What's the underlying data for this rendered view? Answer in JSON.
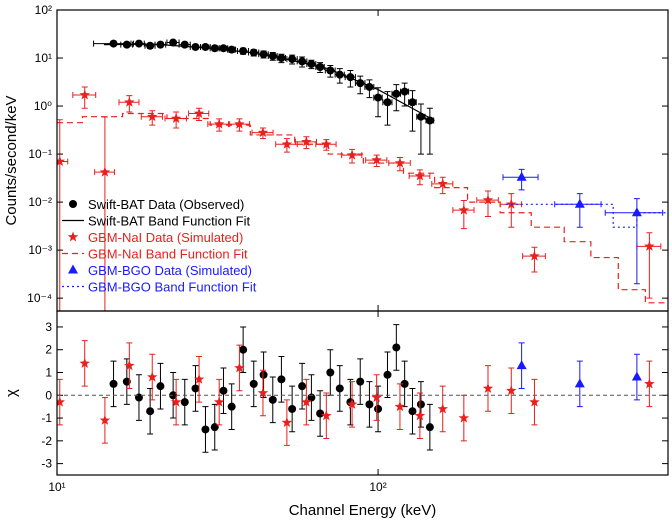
{
  "chart_data": [
    {
      "type": "scatter",
      "ylabel": "Counts/second/keV",
      "xlog": true,
      "ylog": true,
      "xlim": [
        10,
        800
      ],
      "ylim": [
        5.4e-05,
        100
      ],
      "xticks": [
        10,
        100
      ],
      "yticks": [
        {
          "value": 0.0001,
          "label": "10⁻⁴"
        },
        {
          "value": 0.001,
          "label": "10⁻³"
        },
        {
          "value": 0.01,
          "label": "10⁻²"
        },
        {
          "value": 0.1,
          "label": "10⁻¹"
        },
        {
          "value": 1,
          "label": "10⁰"
        },
        {
          "value": 10,
          "label": "10¹"
        },
        {
          "value": 100,
          "label": "10²"
        }
      ],
      "legend": "lower left",
      "series": [
        {
          "name": "Swift-BAT Data (Observed)",
          "color": "#000000",
          "marker": "circle",
          "x": [
            15,
            16.5,
            18,
            19.5,
            21,
            23,
            25,
            27,
            29,
            31,
            33,
            35,
            38,
            41,
            44,
            47,
            50,
            54,
            58,
            62,
            66,
            71,
            76,
            82,
            88,
            94,
            100,
            107,
            114,
            121,
            128,
            136,
            145
          ],
          "values": [
            20,
            19,
            20,
            18,
            19,
            21,
            19,
            17,
            17,
            16,
            16,
            15,
            14,
            13,
            12,
            11,
            10,
            9.5,
            8.5,
            7.5,
            6.5,
            5.5,
            4.5,
            4,
            3,
            2.5,
            1.5,
            1.2,
            1.8,
            2,
            1.2,
            0.6,
            0.5
          ],
          "yerr": [
            2,
            2,
            2,
            2,
            2,
            2,
            2,
            2,
            2,
            2,
            2,
            2,
            2,
            2,
            2,
            2,
            2,
            2,
            2,
            1.5,
            1.5,
            1.5,
            1.5,
            1.5,
            1.2,
            1,
            0.9,
            0.8,
            1,
            1,
            0.9,
            0.5,
            0.4
          ],
          "xerr": [
            2,
            0.7,
            0.7,
            0.7,
            0.8,
            1,
            1,
            1,
            1,
            1,
            1,
            1,
            1.5,
            1.5,
            1.5,
            1.5,
            1.5,
            2,
            2,
            2,
            2,
            2.5,
            2.5,
            3,
            3,
            3,
            3,
            3.5,
            3.5,
            3.5,
            3.5,
            4,
            4
          ]
        },
        {
          "name": "Swift-BAT Band Function Fit",
          "color": "#000000",
          "mode": "line",
          "x": [
            14,
            20,
            30,
            40,
            50,
            70,
            100,
            150
          ],
          "values": [
            19,
            19.5,
            16,
            13,
            10,
            6,
            2.2,
            0.5
          ]
        },
        {
          "name": "GBM-NaI Data (Simulated)",
          "color": "#e8201e",
          "marker": "star",
          "x": [
            10.2,
            12.2,
            14.1,
            16.8,
            19.8,
            23.5,
            27.7,
            32,
            37,
            43.8,
            52,
            59.8,
            69,
            83,
            99,
            117,
            135,
            159,
            185,
            220,
            260,
            307,
            700
          ],
          "values": [
            0.07,
            1.7,
            0.042,
            1.2,
            0.6,
            0.55,
            0.7,
            0.42,
            0.42,
            0.28,
            0.16,
            0.18,
            0.16,
            0.095,
            0.075,
            0.065,
            0.035,
            0.024,
            0.0068,
            0.011,
            0.009,
            0.00075,
            0.0012
          ],
          "yerr": [
            0.45,
            0.8,
            0.55,
            0.45,
            0.2,
            0.2,
            0.2,
            0.12,
            0.12,
            0.07,
            0.05,
            0.05,
            0.04,
            0.03,
            0.02,
            0.02,
            0.012,
            0.009,
            0.004,
            0.006,
            0.006,
            0.0004,
            0.0011
          ],
          "xerr": [
            0.6,
            1,
            1,
            1.2,
            1.5,
            1.8,
            2,
            2.5,
            2.8,
            3.3,
            4,
            4.5,
            5,
            6,
            7.5,
            9,
            10,
            12,
            14,
            17,
            20,
            25,
            60
          ]
        },
        {
          "name": "GBM-NaI Band Function Fit",
          "color": "#e8201e",
          "mode": "line",
          "dash": "dashed",
          "x": [
            10,
            12,
            12,
            16,
            16,
            22,
            22,
            30,
            30,
            40,
            40,
            55,
            55,
            70,
            70,
            90,
            90,
            120,
            120,
            150,
            150,
            190,
            190,
            240,
            240,
            300,
            300,
            380,
            380,
            460,
            460,
            560,
            560,
            680,
            680,
            800
          ],
          "values": [
            0.45,
            0.45,
            0.6,
            0.6,
            0.7,
            0.7,
            0.55,
            0.55,
            0.4,
            0.4,
            0.25,
            0.25,
            0.16,
            0.16,
            0.1,
            0.1,
            0.065,
            0.065,
            0.04,
            0.04,
            0.02,
            0.02,
            0.01,
            0.01,
            0.006,
            0.006,
            0.003,
            0.003,
            0.0015,
            0.0015,
            0.0007,
            0.0007,
            0.00015,
            0.00015,
            8e-05,
            8e-05
          ]
        },
        {
          "name": "GBM-BGO Data (Simulated)",
          "color": "#1a1aff",
          "marker": "triangle",
          "x": [
            280,
            425,
            640
          ],
          "values": [
            0.033,
            0.009,
            0.006
          ],
          "yerr": [
            0.015,
            0.006,
            0.0058
          ],
          "xerr": [
            35,
            70,
            130
          ]
        },
        {
          "name": "GBM-BGO Band Function Fit",
          "color": "#1a1aff",
          "mode": "line",
          "dash": "dotted",
          "x": [
            250,
            540,
            540,
            640,
            640,
            800
          ],
          "values": [
            0.009,
            0.009,
            0.003,
            0.003,
            0.006,
            0.006
          ]
        }
      ]
    },
    {
      "type": "scatter",
      "ylabel": "χ",
      "xlabel": "Channel Energy (keV)",
      "xlog": true,
      "ylog": false,
      "xlim": [
        10,
        800
      ],
      "ylim": [
        -3.5,
        3.7
      ],
      "hline": 0,
      "xticks": [
        {
          "value": 10,
          "label": "10¹"
        },
        {
          "value": 100,
          "label": "10²"
        }
      ],
      "yticks": [
        -3,
        -2,
        -1,
        0,
        1,
        2,
        3
      ],
      "series": [
        {
          "color": "#000000",
          "marker": "circle",
          "yerr": 1,
          "x": [
            15,
            16.5,
            18,
            19.5,
            21,
            23,
            25,
            27,
            29,
            31,
            33,
            35,
            38,
            41,
            44,
            47,
            50,
            54,
            58,
            62,
            66,
            71,
            76,
            82,
            88,
            94,
            100,
            107,
            114,
            121,
            128,
            136,
            145
          ],
          "values": [
            0.5,
            0.6,
            -0.1,
            -0.7,
            0.4,
            0,
            -0.3,
            0.3,
            -1.5,
            -1.4,
            0.2,
            -0.5,
            2,
            0.5,
            0.9,
            -0.2,
            0.7,
            -0.6,
            0.4,
            -0.1,
            -0.8,
            1,
            0.3,
            -0.3,
            0.6,
            -0.4,
            -0.6,
            0.9,
            2.1,
            0.5,
            -0.7,
            -0.4,
            -1.4
          ]
        },
        {
          "color": "#e8201e",
          "marker": "star",
          "yerr": 1,
          "x": [
            10.2,
            12.2,
            14.1,
            16.8,
            19.8,
            23.5,
            27.7,
            32,
            37,
            43.8,
            52,
            59.8,
            69,
            83,
            99,
            117,
            135,
            159,
            185,
            220,
            260,
            307,
            700
          ],
          "values": [
            -0.3,
            1.4,
            -1.1,
            1.3,
            0.8,
            -0.3,
            0.7,
            -0.3,
            1.2,
            0.1,
            -1.2,
            -0.3,
            -0.9,
            -0.4,
            -0.1,
            -0.5,
            -0.9,
            -0.6,
            -1.0,
            0.3,
            0.2,
            -0.3,
            0.5
          ]
        },
        {
          "color": "#1a1aff",
          "marker": "triangle",
          "yerr": 1,
          "x": [
            280,
            425,
            640
          ],
          "values": [
            1.3,
            0.5,
            0.8
          ]
        }
      ]
    }
  ]
}
